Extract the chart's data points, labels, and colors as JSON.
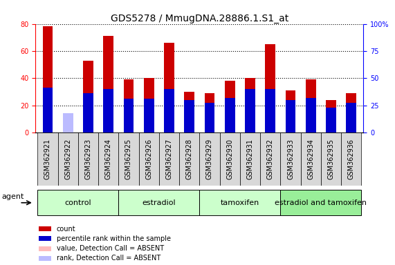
{
  "title": "GDS5278 / MmugDNA.28886.1.S1_at",
  "samples": [
    "GSM362921",
    "GSM362922",
    "GSM362923",
    "GSM362924",
    "GSM362925",
    "GSM362926",
    "GSM362927",
    "GSM362928",
    "GSM362929",
    "GSM362930",
    "GSM362931",
    "GSM362932",
    "GSM362933",
    "GSM362934",
    "GSM362935",
    "GSM362936"
  ],
  "count_values": [
    78,
    0,
    53,
    71,
    39,
    40,
    66,
    30,
    29,
    38,
    40,
    65,
    31,
    39,
    24,
    29
  ],
  "count_absent": [
    false,
    true,
    false,
    false,
    false,
    false,
    false,
    false,
    false,
    false,
    false,
    false,
    false,
    false,
    false,
    false
  ],
  "rank_values": [
    41,
    18,
    36,
    40,
    31,
    31,
    40,
    30,
    27,
    32,
    40,
    40,
    30,
    32,
    23,
    27
  ],
  "rank_absent": [
    false,
    true,
    false,
    false,
    false,
    false,
    false,
    false,
    false,
    false,
    false,
    false,
    false,
    false,
    false,
    false
  ],
  "groups": [
    {
      "label": "control",
      "start": 0,
      "end": 4
    },
    {
      "label": "estradiol",
      "start": 4,
      "end": 8
    },
    {
      "label": "tamoxifen",
      "start": 8,
      "end": 12
    },
    {
      "label": "estradiol and tamoxifen",
      "start": 12,
      "end": 16
    }
  ],
  "group_colors": [
    "#ccffcc",
    "#ccffcc",
    "#ccffcc",
    "#99ee99"
  ],
  "ylim_left": [
    0,
    80
  ],
  "ylim_right": [
    0,
    100
  ],
  "left_yticks": [
    0,
    20,
    40,
    60,
    80
  ],
  "right_yticks": [
    0,
    25,
    50,
    75,
    100
  ],
  "right_yticklabels": [
    "0",
    "25",
    "50",
    "75",
    "100%"
  ],
  "color_count": "#cc0000",
  "color_count_absent": "#ffbbbb",
  "color_rank": "#0000cc",
  "color_rank_absent": "#bbbbff",
  "agent_label": "agent",
  "legend_labels": [
    "count",
    "percentile rank within the sample",
    "value, Detection Call = ABSENT",
    "rank, Detection Call = ABSENT"
  ],
  "legend_colors": [
    "#cc0000",
    "#0000cc",
    "#ffbbbb",
    "#bbbbff"
  ],
  "bar_width": 0.5,
  "rank_bar_width": 0.5,
  "title_fontsize": 10,
  "tick_fontsize": 7,
  "label_fontsize": 8,
  "group_label_fontsize": 8
}
